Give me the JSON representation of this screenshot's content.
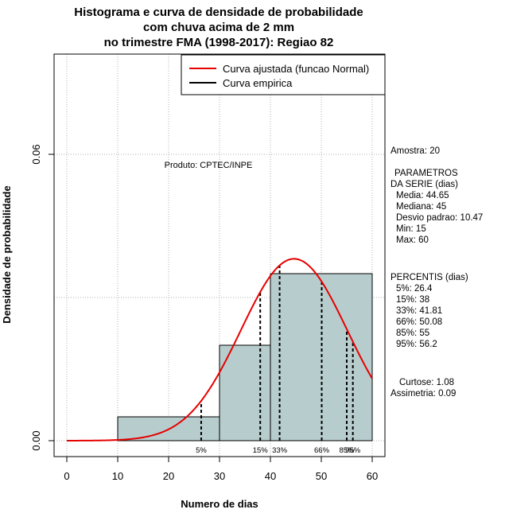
{
  "chart_data": {
    "type": "histogram",
    "title": [
      "Histograma e curva de densidade de probabilidade",
      "com chuva acima de 2 mm",
      "no trimestre FMA (1998-2017): Regiao 82"
    ],
    "xlabel": "Numero de dias",
    "ylabel": "Densidade de probabilidade",
    "xlim": [
      -4,
      62
    ],
    "ylim": [
      0,
      0.08
    ],
    "x_ticks": [
      0,
      10,
      20,
      30,
      40,
      50,
      60
    ],
    "y_ticks": [
      0.0,
      0.06
    ],
    "y_tick_labels": [
      "0.00",
      "0.06"
    ],
    "grid": true,
    "bins": [
      {
        "x0": 10,
        "x1": 30,
        "density": 0.005
      },
      {
        "x0": 30,
        "x1": 40,
        "density": 0.02
      },
      {
        "x0": 40,
        "x1": 60,
        "density": 0.035
      }
    ],
    "bar_color": "#b7cdcd",
    "normal_curve": {
      "name": "Curva ajustada (funcao Normal)",
      "mean": 44.65,
      "sd": 10.47,
      "color": "#e60000",
      "x_range": [
        0,
        60
      ]
    },
    "empirical_curve": {
      "name": "Curva empirica",
      "color": "#000000"
    },
    "legend": {
      "position": "top-right",
      "entries": [
        {
          "label": "Curva ajustada (funcao Normal)",
          "color": "#e60000"
        },
        {
          "label": "Curva empirica",
          "color": "#000000"
        }
      ]
    },
    "annotation": "Produto: CPTEC/INPE",
    "percentiles": [
      {
        "label": "5%",
        "value": 26.4
      },
      {
        "label": "15%",
        "value": 38
      },
      {
        "label": "33%",
        "value": 41.81
      },
      {
        "label": "66%",
        "value": 50.08
      },
      {
        "label": "85%",
        "value": 55
      },
      {
        "label": "95%",
        "value": 56.2
      }
    ]
  },
  "side_panel": {
    "amostra": "Amostra: 20",
    "params_header_1": "PARAMETROS",
    "params_header_2": "DA SERIE (dias)",
    "params": [
      "Media: 44.65",
      "Mediana: 45",
      "Desvio padrao: 10.47",
      "Min: 15",
      "Max: 60"
    ],
    "percentis_header": "PERCENTIS (dias)",
    "percentis": [
      "5%: 26.4",
      "15%: 38",
      "33%: 41.81",
      "66%: 50.08",
      "85%: 55",
      "95%: 56.2"
    ],
    "curtose": "Curtose: 1.08",
    "assimetria": "Assimetria: 0.09"
  }
}
